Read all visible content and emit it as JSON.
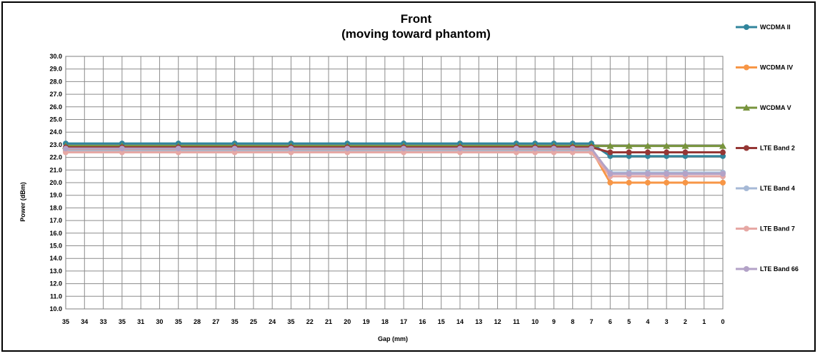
{
  "chart_data": {
    "type": "line",
    "title": "Front",
    "subtitle": "(moving toward phantom)",
    "xlabel": "Gap (mm)",
    "ylabel": "Power (dBm)",
    "ylim": [
      10.0,
      30.0
    ],
    "ytick_step": 1.0,
    "grid": true,
    "legend_placement": "right",
    "x": [
      "35",
      "34",
      "33",
      "35",
      "31",
      "30",
      "35",
      "28",
      "27",
      "35",
      "25",
      "24",
      "35",
      "22",
      "21",
      "20",
      "19",
      "18",
      "17",
      "16",
      "15",
      "14",
      "13",
      "12",
      "11",
      "10",
      "9",
      "8",
      "7",
      "6",
      "5",
      "4",
      "3",
      "2",
      "1",
      "0"
    ],
    "series": [
      {
        "name": "WCDMA II",
        "color": "#31859c",
        "values": [
          23.1,
          null,
          null,
          23.1,
          null,
          null,
          23.1,
          null,
          null,
          23.1,
          null,
          null,
          23.1,
          null,
          null,
          23.1,
          null,
          null,
          23.1,
          null,
          null,
          23.1,
          null,
          null,
          23.1,
          23.1,
          23.1,
          23.1,
          23.1,
          22.1,
          22.1,
          22.1,
          22.1,
          22.1,
          null,
          22.1
        ]
      },
      {
        "name": "WCDMA IV",
        "color": "#f79646",
        "values": [
          22.6,
          null,
          null,
          22.6,
          null,
          null,
          22.6,
          null,
          null,
          22.6,
          null,
          null,
          22.6,
          null,
          null,
          22.6,
          null,
          null,
          22.6,
          null,
          null,
          22.6,
          null,
          null,
          22.6,
          22.6,
          22.6,
          22.6,
          22.6,
          20.0,
          20.0,
          20.0,
          20.0,
          20.0,
          null,
          20.0
        ]
      },
      {
        "name": "WCDMA V",
        "color": "#77933c",
        "values": [
          22.9,
          null,
          null,
          22.9,
          null,
          null,
          22.9,
          null,
          null,
          22.9,
          null,
          null,
          22.9,
          null,
          null,
          22.9,
          null,
          null,
          22.9,
          null,
          null,
          22.9,
          null,
          null,
          22.9,
          22.9,
          22.9,
          22.9,
          22.9,
          22.9,
          22.9,
          22.9,
          22.9,
          22.9,
          null,
          22.9
        ]
      },
      {
        "name": "LTE Band 2",
        "color": "#953735",
        "values": [
          22.8,
          null,
          null,
          22.8,
          null,
          null,
          22.8,
          null,
          null,
          22.8,
          null,
          null,
          22.8,
          null,
          null,
          22.8,
          null,
          null,
          22.8,
          null,
          null,
          22.8,
          null,
          null,
          22.8,
          22.8,
          22.8,
          22.8,
          22.8,
          22.4,
          22.4,
          22.4,
          22.4,
          22.4,
          null,
          22.4
        ]
      },
      {
        "name": "LTE Band 4",
        "color": "#a6b9d6",
        "values": [
          22.5,
          null,
          null,
          22.5,
          null,
          null,
          22.5,
          null,
          null,
          22.5,
          null,
          null,
          22.5,
          null,
          null,
          22.5,
          null,
          null,
          22.5,
          null,
          null,
          22.5,
          null,
          null,
          22.5,
          22.5,
          22.5,
          22.5,
          22.5,
          20.8,
          20.8,
          20.8,
          20.8,
          20.8,
          null,
          20.8
        ]
      },
      {
        "name": "LTE Band 7",
        "color": "#e6a8a4",
        "values": [
          22.4,
          null,
          null,
          22.4,
          null,
          null,
          22.4,
          null,
          null,
          22.4,
          null,
          null,
          22.4,
          null,
          null,
          22.4,
          null,
          null,
          22.4,
          null,
          null,
          22.4,
          null,
          null,
          22.4,
          22.4,
          22.4,
          22.4,
          22.4,
          20.5,
          20.5,
          20.5,
          20.5,
          20.5,
          null,
          20.5
        ]
      },
      {
        "name": "LTE Band 66",
        "color": "#b3a2c7",
        "values": [
          22.7,
          null,
          null,
          22.7,
          null,
          null,
          22.7,
          null,
          null,
          22.7,
          null,
          null,
          22.7,
          null,
          null,
          22.7,
          null,
          null,
          22.7,
          null,
          null,
          22.7,
          null,
          null,
          22.7,
          22.7,
          22.7,
          22.7,
          22.7,
          20.7,
          20.7,
          20.7,
          20.7,
          20.7,
          null,
          20.7
        ]
      }
    ]
  }
}
